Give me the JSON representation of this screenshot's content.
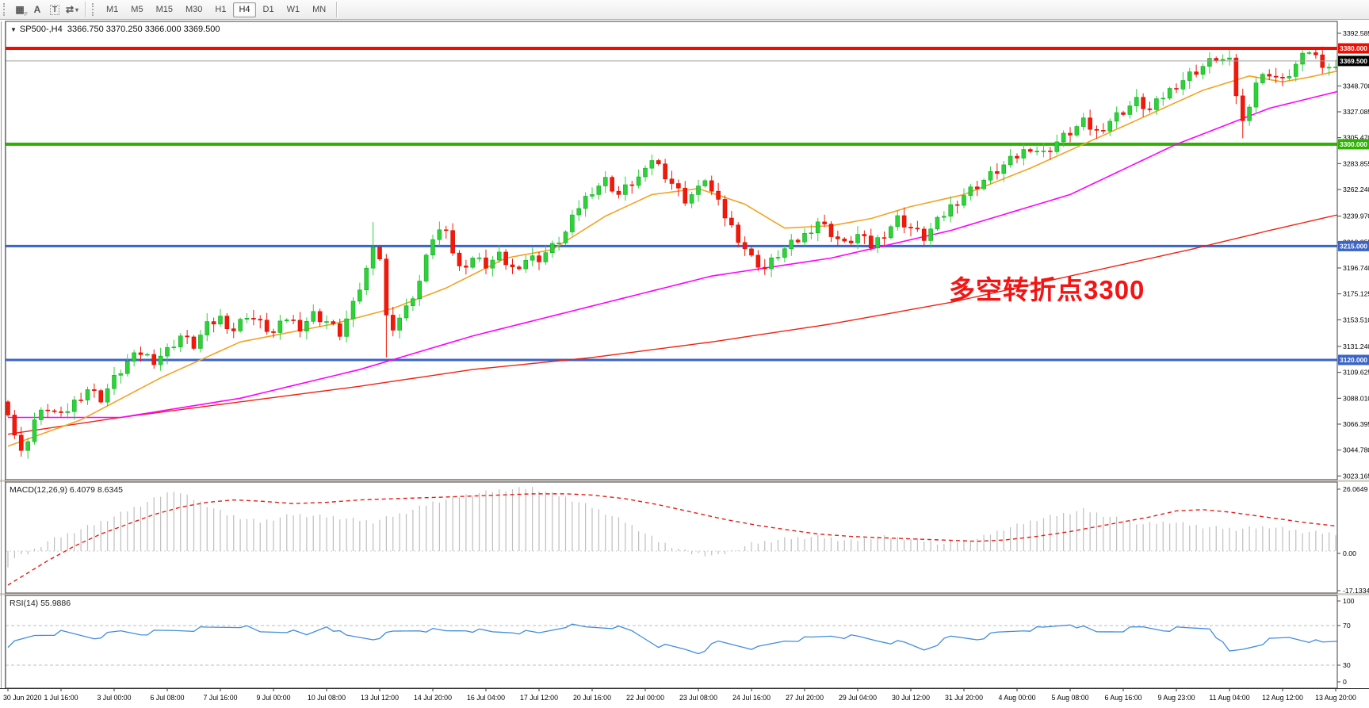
{
  "toolbar": {
    "icons": [
      {
        "name": "grid-f-icon",
        "glyph": "▦",
        "sub": "F"
      },
      {
        "name": "font-a-icon",
        "glyph": "A",
        "sub": ""
      },
      {
        "name": "text-box-icon",
        "glyph": "T",
        "sub": ""
      },
      {
        "name": "arrows-icon",
        "glyph": "⇄",
        "sub": "▾"
      }
    ],
    "timeframes": [
      "M1",
      "M5",
      "M15",
      "M30",
      "H1",
      "H4",
      "D1",
      "W1",
      "MN"
    ],
    "selected_timeframe": "H4"
  },
  "header": {
    "dropdown_glyph": "▼",
    "symbol": "SP500-,H4",
    "ohlc": "3366.750 3370.250 3366.000 3369.500"
  },
  "annotation": {
    "text": "多空转折点3300",
    "color": "#f51313"
  },
  "price_axis": {
    "labels": [
      "3392.585",
      "3348.700",
      "3327.085",
      "3305.470",
      "3283.855",
      "3262.240",
      "3239.970",
      "3218.355",
      "3196.740",
      "3175.125",
      "3153.510",
      "3131.240",
      "3109.625",
      "3088.010",
      "3066.395",
      "3044.780",
      "3023.165"
    ],
    "badges": [
      {
        "text": "3380.000",
        "price": 3380,
        "bg": "#f30b00",
        "fg": "#ffffff"
      },
      {
        "text": "3369.500",
        "price": 3369.5,
        "bg": "#000000",
        "fg": "#ffffff"
      },
      {
        "text": "3300.000",
        "price": 3300,
        "bg": "#2db200",
        "fg": "#ffffff"
      },
      {
        "text": "3215.000",
        "price": 3215,
        "bg": "#3a64c8",
        "fg": "#ffffff"
      },
      {
        "text": "3120.000",
        "price": 3120,
        "bg": "#3a64c8",
        "fg": "#ffffff"
      }
    ]
  },
  "hlines": [
    {
      "price": 3380,
      "color": "#f30b00",
      "w": 4,
      "front": true
    },
    {
      "price": 3369.5,
      "color": "#9e9e9e",
      "w": 1,
      "front": true
    },
    {
      "price": 3300,
      "color": "#2db200",
      "w": 4,
      "front": false
    },
    {
      "price": 3215,
      "color": "#3a64c8",
      "w": 3,
      "front": false
    },
    {
      "price": 3120,
      "color": "#3a64c8",
      "w": 3,
      "front": false
    }
  ],
  "colors": {
    "bull": "#2fd13b",
    "bull_stroke": "#12ab22",
    "bear": "#f5170a",
    "bear_stroke": "#cf1104",
    "ma_fast": "#f2a324",
    "ma_mid": "#ff00ff",
    "ma_slow": "#f32011",
    "histogram": "#bfbfbf",
    "signal": "#e31e18",
    "rsi": "#3f8edc",
    "levels": "#bdbdbd",
    "axis_text": "#000000",
    "panel_border": "#5e5e5e"
  },
  "chart_data": {
    "type": "candlestick+indicators",
    "symbol": "SP500",
    "timeframe": "H4",
    "bars": 202,
    "price_range_visible": [
      3023.165,
      3392.585
    ],
    "x_labels": [
      "30 Jun 2020",
      "1 Jul 16:00",
      "3 Jul 00:00",
      "6 Jul 08:00",
      "7 Jul 16:00",
      "9 Jul 00:00",
      "10 Jul 08:00",
      "13 Jul 12:00",
      "14 Jul 20:00",
      "16 Jul 04:00",
      "17 Jul 12:00",
      "20 Jul 16:00",
      "22 Jul 00:00",
      "23 Jul 08:00",
      "24 Jul 16:00",
      "27 Jul 20:00",
      "29 Jul 04:00",
      "30 Jul 12:00",
      "31 Jul 20:00",
      "4 Aug 00:00",
      "5 Aug 08:00",
      "6 Aug 16:00",
      "9 Aug 23:00",
      "11 Aug 04:00",
      "12 Aug 12:00",
      "13 Aug 20:00"
    ],
    "first_open": 3085,
    "close_waypoints": [
      [
        0,
        3078
      ],
      [
        1,
        3058
      ],
      [
        2,
        3042
      ],
      [
        3,
        3055
      ],
      [
        4,
        3070
      ],
      [
        6,
        3080
      ],
      [
        8,
        3072
      ],
      [
        10,
        3085
      ],
      [
        12,
        3096
      ],
      [
        14,
        3088
      ],
      [
        16,
        3104
      ],
      [
        18,
        3118
      ],
      [
        20,
        3126
      ],
      [
        22,
        3120
      ],
      [
        24,
        3128
      ],
      [
        26,
        3140
      ],
      [
        28,
        3132
      ],
      [
        30,
        3148
      ],
      [
        32,
        3155
      ],
      [
        34,
        3145
      ],
      [
        36,
        3158
      ],
      [
        38,
        3150
      ],
      [
        40,
        3142
      ],
      [
        42,
        3155
      ],
      [
        44,
        3148
      ],
      [
        46,
        3158
      ],
      [
        48,
        3152
      ],
      [
        50,
        3142
      ],
      [
        52,
        3165
      ],
      [
        54,
        3195
      ],
      [
        55,
        3218
      ],
      [
        56,
        3205
      ],
      [
        57,
        3155
      ],
      [
        58,
        3148
      ],
      [
        60,
        3162
      ],
      [
        62,
        3185
      ],
      [
        64,
        3222
      ],
      [
        66,
        3232
      ],
      [
        67,
        3210
      ],
      [
        68,
        3196
      ],
      [
        70,
        3205
      ],
      [
        72,
        3199
      ],
      [
        74,
        3206
      ],
      [
        76,
        3196
      ],
      [
        78,
        3204
      ],
      [
        80,
        3205
      ],
      [
        82,
        3214
      ],
      [
        84,
        3226
      ],
      [
        86,
        3248
      ],
      [
        88,
        3262
      ],
      [
        90,
        3270
      ],
      [
        92,
        3258
      ],
      [
        94,
        3268
      ],
      [
        96,
        3276
      ],
      [
        97,
        3288
      ],
      [
        98,
        3282
      ],
      [
        100,
        3268
      ],
      [
        102,
        3254
      ],
      [
        104,
        3262
      ],
      [
        105,
        3272
      ],
      [
        106,
        3260
      ],
      [
        108,
        3240
      ],
      [
        110,
        3222
      ],
      [
        112,
        3205
      ],
      [
        114,
        3196
      ],
      [
        116,
        3208
      ],
      [
        118,
        3216
      ],
      [
        120,
        3224
      ],
      [
        122,
        3236
      ],
      [
        124,
        3226
      ],
      [
        126,
        3216
      ],
      [
        128,
        3224
      ],
      [
        130,
        3215
      ],
      [
        132,
        3226
      ],
      [
        134,
        3238
      ],
      [
        136,
        3230
      ],
      [
        138,
        3222
      ],
      [
        140,
        3235
      ],
      [
        142,
        3248
      ],
      [
        144,
        3258
      ],
      [
        146,
        3266
      ],
      [
        148,
        3274
      ],
      [
        150,
        3282
      ],
      [
        152,
        3290
      ],
      [
        154,
        3298
      ],
      [
        156,
        3292
      ],
      [
        158,
        3302
      ],
      [
        160,
        3310
      ],
      [
        162,
        3318
      ],
      [
        164,
        3310
      ],
      [
        166,
        3320
      ],
      [
        168,
        3328
      ],
      [
        170,
        3336
      ],
      [
        172,
        3328
      ],
      [
        174,
        3340
      ],
      [
        176,
        3350
      ],
      [
        178,
        3358
      ],
      [
        180,
        3365
      ],
      [
        182,
        3372
      ],
      [
        184,
        3368
      ],
      [
        185,
        3342
      ],
      [
        186,
        3318
      ],
      [
        187,
        3335
      ],
      [
        188,
        3352
      ],
      [
        190,
        3360
      ],
      [
        192,
        3352
      ],
      [
        194,
        3366
      ],
      [
        196,
        3378
      ],
      [
        198,
        3368
      ],
      [
        200,
        3362
      ],
      [
        201,
        3369.5
      ]
    ],
    "wick_overrides": {
      "55": {
        "high": 3235
      },
      "57": {
        "low": 3122
      },
      "186": {
        "low": 3305
      }
    },
    "ma_fast_waypoints": [
      [
        0,
        3048
      ],
      [
        11,
        3070
      ],
      [
        23,
        3105
      ],
      [
        35,
        3135
      ],
      [
        49,
        3150
      ],
      [
        58,
        3163
      ],
      [
        66,
        3180
      ],
      [
        75,
        3205
      ],
      [
        82,
        3212
      ],
      [
        90,
        3240
      ],
      [
        97,
        3258
      ],
      [
        104,
        3263
      ],
      [
        111,
        3250
      ],
      [
        117,
        3230
      ],
      [
        124,
        3232
      ],
      [
        130,
        3238
      ],
      [
        136,
        3248
      ],
      [
        144,
        3258
      ],
      [
        154,
        3280
      ],
      [
        164,
        3305
      ],
      [
        172,
        3325
      ],
      [
        180,
        3345
      ],
      [
        187,
        3357
      ],
      [
        192,
        3352
      ],
      [
        196,
        3356
      ],
      [
        201,
        3362
      ]
    ],
    "ma_mid_waypoints": [
      [
        0,
        3072
      ],
      [
        17,
        3072
      ],
      [
        35,
        3088
      ],
      [
        53,
        3112
      ],
      [
        70,
        3140
      ],
      [
        88,
        3165
      ],
      [
        106,
        3190
      ],
      [
        124,
        3205
      ],
      [
        142,
        3228
      ],
      [
        160,
        3258
      ],
      [
        176,
        3300
      ],
      [
        190,
        3330
      ],
      [
        201,
        3345
      ]
    ],
    "ma_slow_waypoints": [
      [
        0,
        3058
      ],
      [
        17,
        3072
      ],
      [
        35,
        3085
      ],
      [
        53,
        3098
      ],
      [
        70,
        3112
      ],
      [
        88,
        3122
      ],
      [
        106,
        3135
      ],
      [
        124,
        3150
      ],
      [
        142,
        3168
      ],
      [
        160,
        3190
      ],
      [
        178,
        3212
      ],
      [
        190,
        3228
      ],
      [
        201,
        3242
      ]
    ],
    "macd": {
      "label": "MACD(12,26,9) 6.4079 8.6345",
      "axis_labels": [
        "26.0649",
        "0.00",
        "-17.1334"
      ],
      "histogram_waypoints": [
        [
          0,
          -6
        ],
        [
          1,
          -3
        ],
        [
          3,
          -1
        ],
        [
          6,
          4
        ],
        [
          11,
          9
        ],
        [
          15,
          13
        ],
        [
          20,
          19
        ],
        [
          25,
          25
        ],
        [
          29,
          20
        ],
        [
          33,
          15
        ],
        [
          38,
          12
        ],
        [
          43,
          15
        ],
        [
          49,
          14
        ],
        [
          55,
          12
        ],
        [
          60,
          16
        ],
        [
          64,
          20
        ],
        [
          69,
          23
        ],
        [
          74,
          25
        ],
        [
          79,
          26
        ],
        [
          84,
          22
        ],
        [
          88,
          18
        ],
        [
          93,
          12
        ],
        [
          98,
          4
        ],
        [
          103,
          -1
        ],
        [
          107,
          -2
        ],
        [
          112,
          3
        ],
        [
          117,
          5
        ],
        [
          122,
          6
        ],
        [
          127,
          4
        ],
        [
          131,
          6
        ],
        [
          136,
          5
        ],
        [
          141,
          3
        ],
        [
          146,
          5
        ],
        [
          150,
          9
        ],
        [
          155,
          13
        ],
        [
          162,
          17
        ],
        [
          166,
          14
        ],
        [
          171,
          11
        ],
        [
          175,
          12
        ],
        [
          180,
          10
        ],
        [
          185,
          9
        ],
        [
          190,
          10
        ],
        [
          195,
          8
        ],
        [
          201,
          7
        ]
      ],
      "signal_waypoints": [
        [
          0,
          -14
        ],
        [
          3,
          -9
        ],
        [
          6,
          -4
        ],
        [
          10,
          2
        ],
        [
          14,
          7
        ],
        [
          18,
          11
        ],
        [
          22,
          15
        ],
        [
          26,
          18
        ],
        [
          30,
          20
        ],
        [
          34,
          21
        ],
        [
          38,
          20.5
        ],
        [
          43,
          19.5
        ],
        [
          48,
          20
        ],
        [
          53,
          21
        ],
        [
          58,
          21.5
        ],
        [
          64,
          22
        ],
        [
          69,
          22.5
        ],
        [
          74,
          23
        ],
        [
          79,
          23.5
        ],
        [
          84,
          23.5
        ],
        [
          88,
          23
        ],
        [
          93,
          21.5
        ],
        [
          98,
          19
        ],
        [
          103,
          16
        ],
        [
          108,
          13
        ],
        [
          113,
          10.5
        ],
        [
          118,
          8.5
        ],
        [
          122,
          7
        ],
        [
          127,
          6
        ],
        [
          131,
          5.5
        ],
        [
          136,
          5
        ],
        [
          141,
          4.5
        ],
        [
          146,
          4
        ],
        [
          150,
          4.5
        ],
        [
          155,
          6
        ],
        [
          160,
          8
        ],
        [
          164,
          10
        ],
        [
          168,
          12
        ],
        [
          172,
          14
        ],
        [
          176,
          16.5
        ],
        [
          180,
          17
        ],
        [
          184,
          16
        ],
        [
          188,
          14.5
        ],
        [
          192,
          13
        ],
        [
          196,
          11.5
        ],
        [
          201,
          10
        ]
      ]
    },
    "rsi": {
      "label": "RSI(14) 55.9886",
      "axis_labels": [
        "100",
        "70",
        "30",
        "0"
      ],
      "levels": [
        70,
        30
      ],
      "waypoints": [
        [
          0,
          50
        ],
        [
          4,
          60
        ],
        [
          8,
          63
        ],
        [
          13,
          58
        ],
        [
          17,
          64
        ],
        [
          20,
          62
        ],
        [
          25,
          65
        ],
        [
          30,
          67
        ],
        [
          35,
          70
        ],
        [
          38,
          63
        ],
        [
          42,
          65
        ],
        [
          45,
          60
        ],
        [
          48,
          70
        ],
        [
          51,
          59
        ],
        [
          55,
          57
        ],
        [
          58,
          63
        ],
        [
          62,
          66
        ],
        [
          66,
          64
        ],
        [
          69,
          66
        ],
        [
          73,
          63
        ],
        [
          76,
          64
        ],
        [
          80,
          62
        ],
        [
          84,
          70
        ],
        [
          87,
          68
        ],
        [
          91,
          69
        ],
        [
          94,
          64
        ],
        [
          98,
          50
        ],
        [
          102,
          46
        ],
        [
          104,
          43
        ],
        [
          107,
          53
        ],
        [
          110,
          50
        ],
        [
          113,
          47
        ],
        [
          117,
          55
        ],
        [
          121,
          57
        ],
        [
          124,
          60
        ],
        [
          128,
          58
        ],
        [
          131,
          55
        ],
        [
          135,
          52
        ],
        [
          138,
          46
        ],
        [
          142,
          58
        ],
        [
          146,
          57
        ],
        [
          149,
          62
        ],
        [
          153,
          66
        ],
        [
          156,
          67
        ],
        [
          160,
          72
        ],
        [
          164,
          63
        ],
        [
          167,
          65
        ],
        [
          171,
          68
        ],
        [
          174,
          66
        ],
        [
          178,
          67
        ],
        [
          181,
          68
        ],
        [
          184,
          43
        ],
        [
          186,
          46
        ],
        [
          190,
          55
        ],
        [
          193,
          58
        ],
        [
          196,
          55
        ],
        [
          198,
          52
        ],
        [
          201,
          55
        ]
      ]
    }
  }
}
